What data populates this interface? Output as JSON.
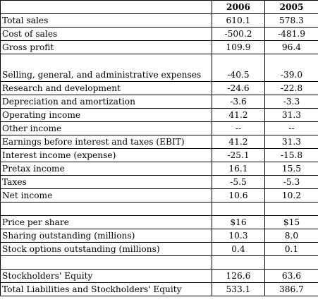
{
  "header": {
    "label": "",
    "year1": "2006",
    "year2": "2005"
  },
  "rows": [
    {
      "label": "Total sales",
      "y1": "610.1",
      "y2": "578.3"
    },
    {
      "label": "Cost of sales",
      "y1": "-500.2",
      "y2": "-481.9"
    },
    {
      "label": "Gross profit",
      "y1": "109.9",
      "y2": "96.4"
    },
    {
      "label": "Selling, general, and administrative expenses",
      "y1": "-40.5",
      "y2": "-39.0"
    },
    {
      "label": "Research and development",
      "y1": "-24.6",
      "y2": "-22.8"
    },
    {
      "label": "Depreciation and amortization",
      "y1": "-3.6",
      "y2": "-3.3"
    },
    {
      "label": "Operating income",
      "y1": "41.2",
      "y2": "31.3"
    },
    {
      "label": "Other income",
      "y1": "--",
      "y2": "--"
    },
    {
      "label": "Earnings before interest and taxes (EBIT)",
      "y1": "41.2",
      "y2": "31.3"
    },
    {
      "label": "Interest income (expense)",
      "y1": "-25.1",
      "y2": "-15.8"
    },
    {
      "label": "Pretax income",
      "y1": "16.1",
      "y2": "15.5"
    },
    {
      "label": "Taxes",
      "y1": "-5.5",
      "y2": "-5.3"
    },
    {
      "label": "Net income",
      "y1": "10.6",
      "y2": "10.2"
    }
  ],
  "share_rows": [
    {
      "label": "Price per share",
      "y1": "$16",
      "y2": "$15"
    },
    {
      "label": "Sharing outstanding (millions)",
      "y1": "10.3",
      "y2": "8.0"
    },
    {
      "label": "Stock options outstanding (millions)",
      "y1": "0.4",
      "y2": "0.1"
    }
  ],
  "equity_rows": [
    {
      "label": "Stockholders' Equity",
      "y1": "126.6",
      "y2": "63.6"
    },
    {
      "label": "Total Liabilities and Stockholders' Equity",
      "y1": "533.1",
      "y2": "386.7"
    }
  ]
}
